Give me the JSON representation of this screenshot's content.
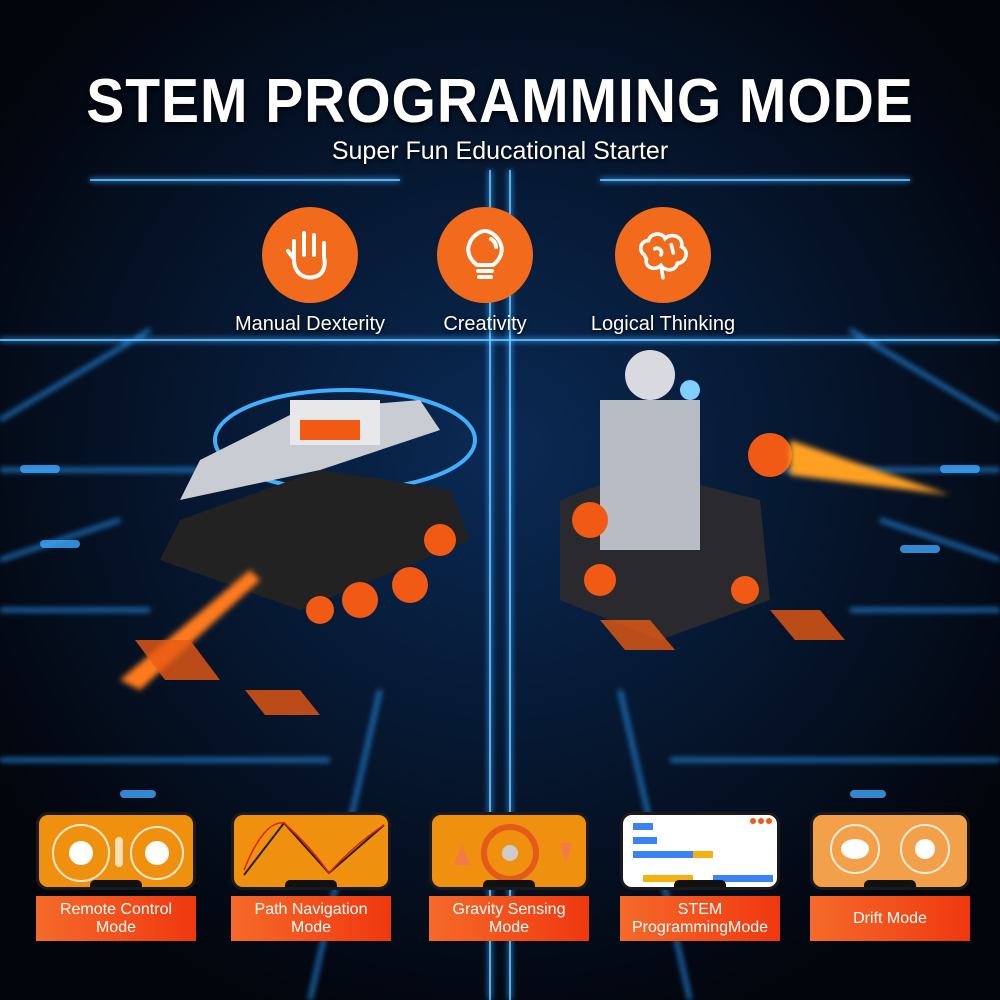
{
  "header": {
    "title": "STEM PROGRAMMING MODE",
    "subtitle": "Super Fun Educational Starter"
  },
  "features": [
    {
      "label": "Manual Dexterity",
      "icon": "hand-icon"
    },
    {
      "label": "Creativity",
      "icon": "lightbulb-icon"
    },
    {
      "label": "Logical Thinking",
      "icon": "brain-icon"
    }
  ],
  "modes": [
    {
      "label": "Remote Control\nMode"
    },
    {
      "label": "Path Navigation\nMode"
    },
    {
      "label": "Gravity Sensing\nMode"
    },
    {
      "label": "STEM\nProgrammingMode"
    },
    {
      "label": "Drift Mode"
    }
  ],
  "colors": {
    "accent": "#f26a1c",
    "glow": "#1e90ff",
    "background": "#03070f"
  }
}
